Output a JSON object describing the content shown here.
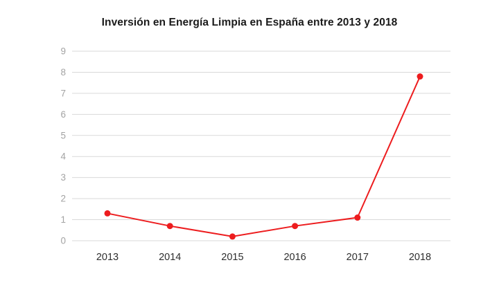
{
  "chart_data": {
    "type": "line",
    "title": "Inversión en Energía Limpia en España entre 2013 y 2018",
    "categories": [
      "2013",
      "2014",
      "2015",
      "2016",
      "2017",
      "2018"
    ],
    "values": [
      1.3,
      0.7,
      0.2,
      0.7,
      1.1,
      7.8
    ],
    "xlabel": "",
    "ylabel": "",
    "ylim": [
      0,
      9
    ],
    "yticks": [
      0,
      1,
      2,
      3,
      4,
      5,
      6,
      7,
      8,
      9
    ],
    "grid": "horizontal",
    "legend_position": "none",
    "series_color": "#ed1c1e",
    "gridline_color": "#d9d9d9",
    "ytick_color": "#a3a3a3",
    "xtick_color": "#2e2e2e",
    "background_color": "#ffffff"
  }
}
